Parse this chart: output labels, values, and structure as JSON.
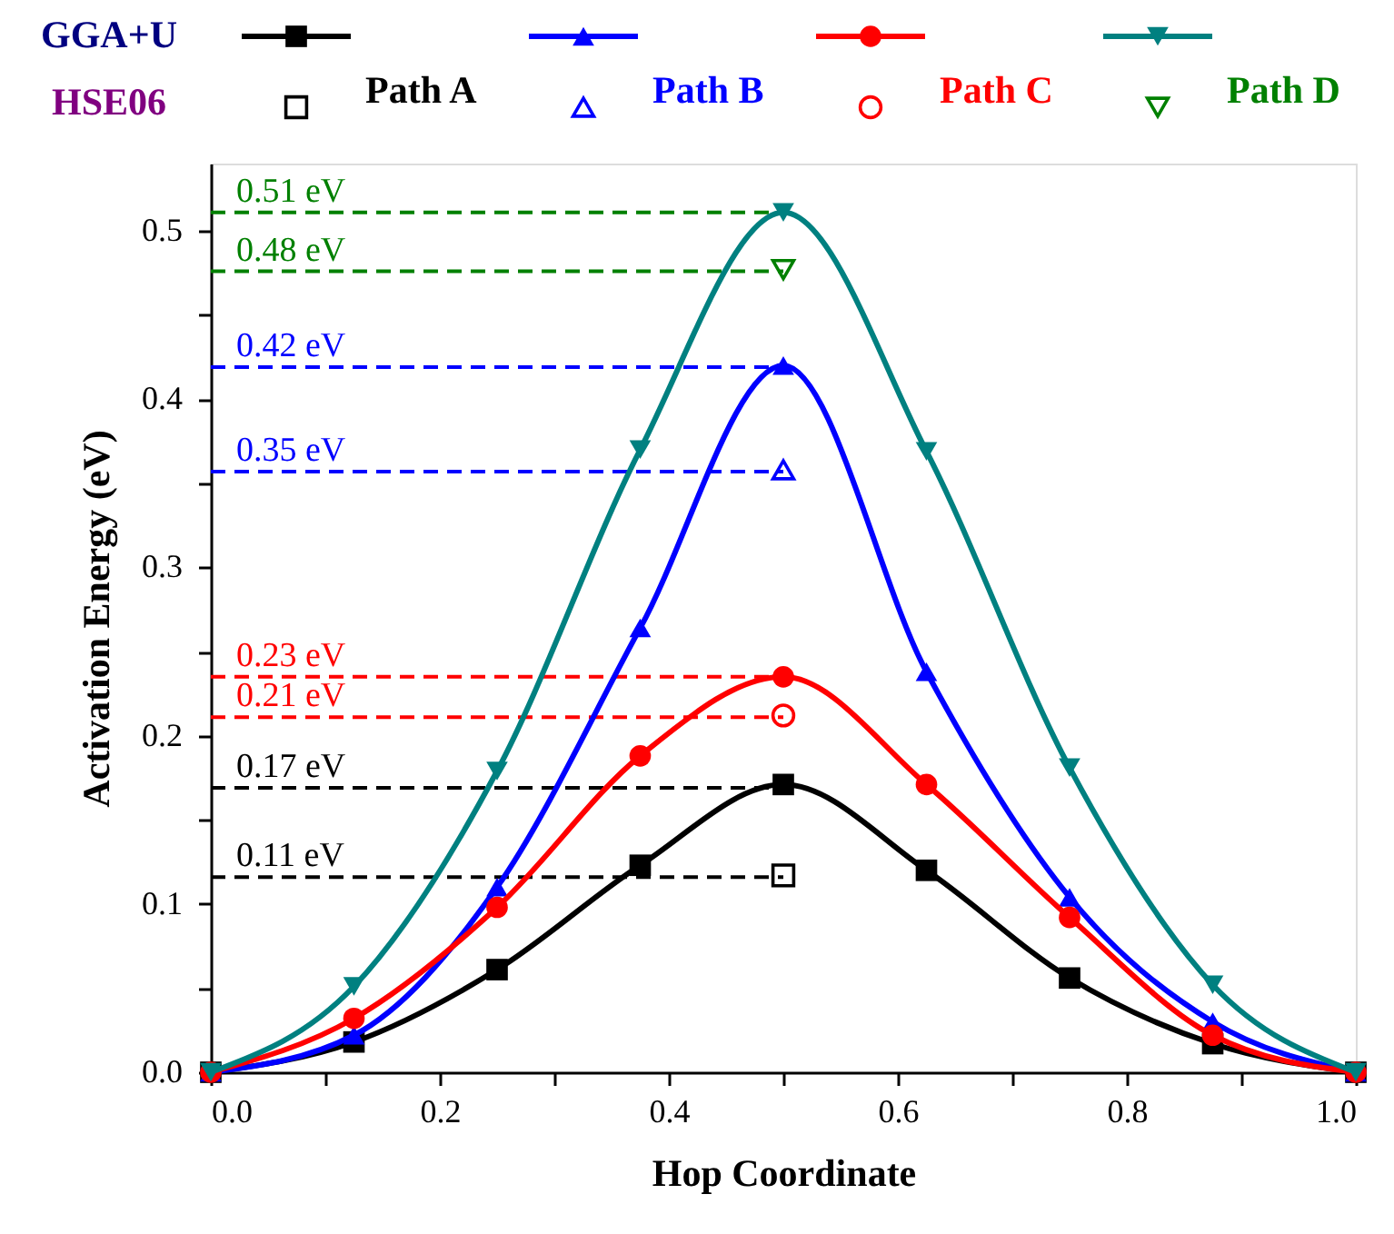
{
  "chart_data": {
    "type": "line",
    "xlabel": "Hop Coordinate",
    "ylabel": "Activation Energy (eV)",
    "legend_title": "GGA+U",
    "annotations": [
      "HSE06"
    ],
    "legend": "top",
    "xlim": [
      0,
      1
    ],
    "ylim": [
      0,
      0.54
    ],
    "xticks": [
      {
        "value": 0,
        "label": "0.0"
      },
      {
        "value": 0.1,
        "label": null
      },
      {
        "value": 0.2,
        "label": "0.2"
      },
      {
        "value": 0.3,
        "label": null
      },
      {
        "value": 0.4,
        "label": "0.4"
      },
      {
        "value": 0.5,
        "label": null
      },
      {
        "value": 0.6,
        "label": "0.6"
      },
      {
        "value": 0.7,
        "label": null
      },
      {
        "value": 0.8,
        "label": "0.8"
      },
      {
        "value": 0.9,
        "label": null
      },
      {
        "value": 1,
        "label": "1.0"
      }
    ],
    "yticks": [
      {
        "value": 0,
        "label": "0.0"
      },
      {
        "value": 0.05,
        "label": null
      },
      0.1,
      {
        "value": 0.15,
        "label": null
      },
      0.2,
      {
        "value": 0.25,
        "label": null
      },
      0.3,
      {
        "value": 0.35,
        "label": null
      },
      0.4,
      {
        "value": 0.45,
        "label": null
      },
      0.5
    ],
    "grid": false,
    "series": [
      {
        "type": "line",
        "color": "#000000",
        "marker": "square",
        "line_style": "solid",
        "x": [
          0,
          0.125,
          0.25,
          0.375,
          0.5,
          0.625,
          0.75,
          0.875,
          1
        ],
        "values": [
          0,
          0.018,
          0.061,
          0.123,
          0.171,
          0.12,
          0.056,
          0.017,
          0
        ]
      },
      {
        "type": "line",
        "color": "#0000ff",
        "marker": "triangle",
        "line_style": "solid",
        "x": [
          0,
          0.125,
          0.25,
          0.375,
          0.5,
          0.625,
          0.75,
          0.875,
          1
        ],
        "values": [
          0,
          0.022,
          0.11,
          0.264,
          0.42,
          0.238,
          0.104,
          0.03,
          0
        ]
      },
      {
        "type": "line",
        "color": "#ff0000",
        "marker": "circle",
        "line_style": "solid",
        "x": [
          0,
          0.125,
          0.25,
          0.375,
          0.5,
          0.625,
          0.75,
          0.875,
          1
        ],
        "values": [
          0,
          0.032,
          0.098,
          0.188,
          0.235,
          0.171,
          0.092,
          0.022,
          0
        ]
      },
      {
        "type": "line",
        "color": "#008080",
        "marker": "triangle-down",
        "line_style": "solid",
        "x": [
          0,
          0.125,
          0.25,
          0.375,
          0.5,
          0.625,
          0.75,
          0.875,
          1
        ],
        "values": [
          0,
          0.051,
          0.179,
          0.37,
          0.511,
          0.369,
          0.181,
          0.052,
          0
        ]
      },
      {
        "type": "scatter",
        "name": "Path A",
        "color": "#000000",
        "marker": "square",
        "x": [
          0.5
        ],
        "values": [
          0.117
        ]
      },
      {
        "type": "scatter",
        "name": "Path B",
        "color": "#0000ff",
        "marker": "triangle",
        "x": [
          0.5
        ],
        "values": [
          0.358
        ]
      },
      {
        "type": "scatter",
        "name": "Path C",
        "color": "#ff0000",
        "marker": "circle",
        "x": [
          0.5
        ],
        "values": [
          0.212
        ]
      },
      {
        "type": "scatter",
        "name": "Path D",
        "color": "#008000",
        "marker": "triangle-down",
        "x": [
          0.5
        ],
        "values": [
          0.477
        ]
      }
    ],
    "ref_lines": [
      {
        "axis": "y",
        "value": 0.511,
        "label": "0.51 eV",
        "color": "#008000",
        "line_style": "dashed"
      },
      {
        "axis": "y",
        "value": 0.476,
        "label": "0.48 eV",
        "color": "#008000",
        "line_style": "dashed"
      },
      {
        "axis": "y",
        "value": 0.419,
        "label": "0.42 eV",
        "color": "#0000ff",
        "line_style": "dashed"
      },
      {
        "axis": "y",
        "value": 0.357,
        "label": "0.35 eV",
        "color": "#0000ff",
        "line_style": "dashed"
      },
      {
        "axis": "y",
        "value": 0.235,
        "label": "0.23 eV",
        "color": "#ff0000",
        "line_style": "dashed"
      },
      {
        "axis": "y",
        "value": 0.211,
        "label": "0.21 eV",
        "color": "#ff0000",
        "line_style": "dashed"
      },
      {
        "axis": "y",
        "value": 0.169,
        "label": "0.17 eV",
        "color": "#000000",
        "line_style": "dashed"
      },
      {
        "axis": "y",
        "value": 0.116,
        "label": "0.11 eV",
        "color": "#000000",
        "line_style": "dashed"
      }
    ]
  }
}
